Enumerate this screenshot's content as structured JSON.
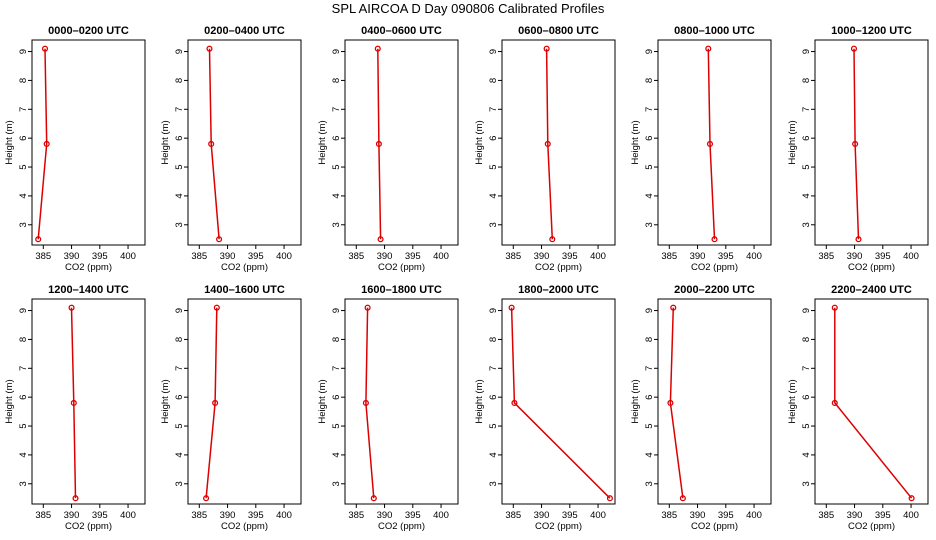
{
  "figure": {
    "title": "SPL AIRCOA D  Day 090806  Calibrated Profiles"
  },
  "chart_data": [
    {
      "type": "line",
      "title": "0000–0200 UTC",
      "xlabel": "CO2 (ppm)",
      "ylabel": "Height (m)",
      "xlim": [
        383,
        403
      ],
      "ylim": [
        2.3,
        9.4
      ],
      "x_ticks": [
        "385",
        "390",
        "395",
        "400"
      ],
      "y_ticks": [
        "3",
        "4",
        "5",
        "6",
        "7",
        "8",
        "9"
      ],
      "x": [
        384.1,
        385.6,
        385.3
      ],
      "y": [
        2.5,
        5.8,
        9.1
      ]
    },
    {
      "type": "line",
      "title": "0200–0400 UTC",
      "xlabel": "CO2 (ppm)",
      "ylabel": "Height (m)",
      "xlim": [
        383,
        403
      ],
      "ylim": [
        2.3,
        9.4
      ],
      "x_ticks": [
        "385",
        "390",
        "395",
        "400"
      ],
      "y_ticks": [
        "3",
        "4",
        "5",
        "6",
        "7",
        "8",
        "9"
      ],
      "x": [
        388.5,
        387.1,
        386.8
      ],
      "y": [
        2.5,
        5.8,
        9.1
      ]
    },
    {
      "type": "line",
      "title": "0400–0600 UTC",
      "xlabel": "CO2 (ppm)",
      "ylabel": "Height (m)",
      "xlim": [
        383,
        403
      ],
      "ylim": [
        2.3,
        9.4
      ],
      "x_ticks": [
        "385",
        "390",
        "395",
        "400"
      ],
      "y_ticks": [
        "3",
        "4",
        "5",
        "6",
        "7",
        "8",
        "9"
      ],
      "x": [
        389.3,
        389.0,
        388.8
      ],
      "y": [
        2.5,
        5.8,
        9.1
      ]
    },
    {
      "type": "line",
      "title": "0600–0800 UTC",
      "xlabel": "CO2 (ppm)",
      "ylabel": "Height (m)",
      "xlim": [
        383,
        403
      ],
      "ylim": [
        2.3,
        9.4
      ],
      "x_ticks": [
        "385",
        "390",
        "395",
        "400"
      ],
      "y_ticks": [
        "3",
        "4",
        "5",
        "6",
        "7",
        "8",
        "9"
      ],
      "x": [
        391.9,
        391.1,
        390.9
      ],
      "y": [
        2.5,
        5.8,
        9.1
      ]
    },
    {
      "type": "line",
      "title": "0800–1000 UTC",
      "xlabel": "CO2 (ppm)",
      "ylabel": "Height (m)",
      "xlim": [
        383,
        403
      ],
      "ylim": [
        2.3,
        9.4
      ],
      "x_ticks": [
        "385",
        "390",
        "395",
        "400"
      ],
      "y_ticks": [
        "3",
        "4",
        "5",
        "6",
        "7",
        "8",
        "9"
      ],
      "x": [
        393.0,
        392.2,
        391.9
      ],
      "y": [
        2.5,
        5.8,
        9.1
      ]
    },
    {
      "type": "line",
      "title": "1000–1200 UTC",
      "xlabel": "CO2 (ppm)",
      "ylabel": "Height (m)",
      "xlim": [
        383,
        403
      ],
      "ylim": [
        2.3,
        9.4
      ],
      "x_ticks": [
        "385",
        "390",
        "395",
        "400"
      ],
      "y_ticks": [
        "3",
        "4",
        "5",
        "6",
        "7",
        "8",
        "9"
      ],
      "x": [
        390.7,
        390.1,
        389.9
      ],
      "y": [
        2.5,
        5.8,
        9.1
      ]
    },
    {
      "type": "line",
      "title": "1200–1400 UTC",
      "xlabel": "CO2 (ppm)",
      "ylabel": "Height (m)",
      "xlim": [
        383,
        403
      ],
      "ylim": [
        2.3,
        9.4
      ],
      "x_ticks": [
        "385",
        "390",
        "395",
        "400"
      ],
      "y_ticks": [
        "3",
        "4",
        "5",
        "6",
        "7",
        "8",
        "9"
      ],
      "x": [
        390.7,
        390.4,
        390.0
      ],
      "y": [
        2.5,
        5.8,
        9.1
      ]
    },
    {
      "type": "line",
      "title": "1400–1600 UTC",
      "xlabel": "CO2 (ppm)",
      "ylabel": "Height (m)",
      "xlim": [
        383,
        403
      ],
      "ylim": [
        2.3,
        9.4
      ],
      "x_ticks": [
        "385",
        "390",
        "395",
        "400"
      ],
      "y_ticks": [
        "3",
        "4",
        "5",
        "6",
        "7",
        "8",
        "9"
      ],
      "x": [
        386.2,
        387.8,
        388.1
      ],
      "y": [
        2.5,
        5.8,
        9.1
      ]
    },
    {
      "type": "line",
      "title": "1600–1800 UTC",
      "xlabel": "CO2 (ppm)",
      "ylabel": "Height (m)",
      "xlim": [
        383,
        403
      ],
      "ylim": [
        2.3,
        9.4
      ],
      "x_ticks": [
        "385",
        "390",
        "395",
        "400"
      ],
      "y_ticks": [
        "3",
        "4",
        "5",
        "6",
        "7",
        "8",
        "9"
      ],
      "x": [
        388.1,
        386.7,
        387.0
      ],
      "y": [
        2.5,
        5.8,
        9.1
      ]
    },
    {
      "type": "line",
      "title": "1800–2000 UTC",
      "xlabel": "CO2 (ppm)",
      "ylabel": "Height (m)",
      "xlim": [
        383,
        403
      ],
      "ylim": [
        2.3,
        9.4
      ],
      "x_ticks": [
        "385",
        "390",
        "395",
        "400"
      ],
      "y_ticks": [
        "3",
        "4",
        "5",
        "6",
        "7",
        "8",
        "9"
      ],
      "x": [
        402.1,
        385.2,
        384.7
      ],
      "y": [
        2.5,
        5.8,
        9.1
      ]
    },
    {
      "type": "line",
      "title": "2000–2200 UTC",
      "xlabel": "CO2 (ppm)",
      "ylabel": "Height (m)",
      "xlim": [
        383,
        403
      ],
      "ylim": [
        2.3,
        9.4
      ],
      "x_ticks": [
        "385",
        "390",
        "395",
        "400"
      ],
      "y_ticks": [
        "3",
        "4",
        "5",
        "6",
        "7",
        "8",
        "9"
      ],
      "x": [
        387.4,
        385.2,
        385.7
      ],
      "y": [
        2.5,
        5.8,
        9.1
      ]
    },
    {
      "type": "line",
      "title": "2200–2400 UTC",
      "xlabel": "CO2 (ppm)",
      "ylabel": "Height (m)",
      "xlim": [
        383,
        403
      ],
      "ylim": [
        2.3,
        9.4
      ],
      "x_ticks": [
        "385",
        "390",
        "395",
        "400"
      ],
      "y_ticks": [
        "3",
        "4",
        "5",
        "6",
        "7",
        "8",
        "9"
      ],
      "x": [
        400.1,
        386.5,
        386.5
      ],
      "y": [
        2.5,
        5.8,
        9.1
      ]
    }
  ],
  "style": {
    "line_color": "#dd0000",
    "axis_color": "#000000",
    "background": "#ffffff"
  }
}
